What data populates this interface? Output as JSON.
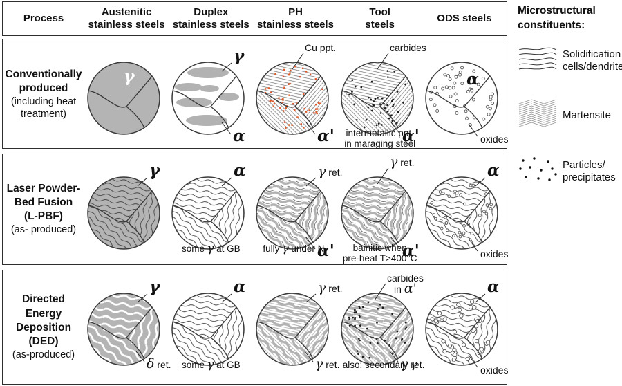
{
  "colors": {
    "gray_fill": "#b4b4b4",
    "line": "#3a3a3a",
    "orange_dot": "#df5b2a",
    "black_dot": "#1a1a1a",
    "gray_band": "#b2b2b2"
  },
  "header": {
    "process": "Process",
    "columns": [
      "Austenitic\nstainless steels",
      "Duplex\nstainless steels",
      "PH\nstainless steels",
      "Tool\nsteels",
      "ODS steels"
    ]
  },
  "rows": [
    {
      "process": {
        "title": "Conventionally\nproduced",
        "subtitle": "(including heat\ntreatment)"
      },
      "cells": [
        {
          "name": "conventional-austenitic",
          "pattern": "solid_gray",
          "dots": "none",
          "labels": [
            {
              "text": "γ",
              "pos": "inside-top",
              "color": "#ffffff"
            }
          ],
          "caption": ""
        },
        {
          "name": "conventional-duplex",
          "pattern": "ellipses",
          "dots": "none",
          "labels": [
            {
              "text": "γ",
              "pos": "top-right"
            },
            {
              "text": "α",
              "pos": "bottom-right-big"
            }
          ],
          "caption": ""
        },
        {
          "name": "conventional-ph",
          "pattern": "hatch",
          "dots": "orange",
          "labels": [
            {
              "text": "Cu ppt.",
              "pos": "above-right"
            },
            {
              "text": "α'",
              "pos": "bottom-right-big"
            }
          ],
          "caption": ""
        },
        {
          "name": "conventional-tool",
          "pattern": "hatch",
          "dots": "black",
          "labels": [
            {
              "text": "carbides",
              "pos": "above-right"
            },
            {
              "text": "α'",
              "pos": "bottom-right-big"
            }
          ],
          "caption": "intermetallic ppt.\nin maraging steel"
        },
        {
          "name": "conventional-ods",
          "pattern": "plain",
          "dots": "open_small",
          "labels": [
            {
              "text": "α",
              "pos": "inside-top-big"
            },
            {
              "text": "oxides",
              "pos": "oxides-out"
            }
          ],
          "caption": ""
        }
      ]
    },
    {
      "process": {
        "title": "Laser Powder-\nBed Fusion\n(L-PBF)",
        "subtitle": "(as- produced)"
      },
      "cells": [
        {
          "name": "lpbf-austenitic",
          "pattern": "wavy_dark_on_gray",
          "dots": "none",
          "labels": [
            {
              "text": "γ",
              "pos": "top-right"
            }
          ],
          "caption": ""
        },
        {
          "name": "lpbf-duplex",
          "pattern": "wavy_dark",
          "dots": "none",
          "labels": [
            {
              "text": "α",
              "pos": "top-right"
            }
          ],
          "caption": "some γ at GB"
        },
        {
          "name": "lpbf-ph",
          "pattern": "wavy_bands",
          "dots": "none",
          "labels": [
            {
              "text": "γ ret.",
              "pos": "top-right"
            },
            {
              "text": "α'",
              "pos": "bottom-right-big"
            }
          ],
          "caption": "fully γ under N₂"
        },
        {
          "name": "lpbf-tool",
          "pattern": "wavy_bands",
          "dots": "none",
          "labels": [
            {
              "text": "γ ret.",
              "pos": "above-right"
            },
            {
              "text": "α'",
              "pos": "bottom-right-big"
            }
          ],
          "caption": "bainitic when\npre-heat T>400°C"
        },
        {
          "name": "lpbf-ods",
          "pattern": "wavy_dark",
          "dots": "open_med",
          "labels": [
            {
              "text": "α",
              "pos": "top-right"
            },
            {
              "text": "oxides",
              "pos": "oxides-out"
            }
          ],
          "caption": ""
        }
      ]
    },
    {
      "process": {
        "title": "Directed\nEnergy\nDeposition\n(DED)",
        "subtitle": "(as-produced)"
      },
      "cells": [
        {
          "name": "ded-austenitic",
          "pattern": "wavy_white_on_gray",
          "dots": "none",
          "labels": [
            {
              "text": "γ",
              "pos": "top-right"
            },
            {
              "text": "δ ret.",
              "pos": "bottom-right"
            }
          ],
          "caption": ""
        },
        {
          "name": "ded-duplex",
          "pattern": "wavy_dark",
          "dots": "none",
          "labels": [
            {
              "text": "α",
              "pos": "top-right"
            }
          ],
          "caption": "some γ at GB"
        },
        {
          "name": "ded-ph",
          "pattern": "hatch_bands",
          "dots": "none",
          "labels": [
            {
              "text": "γ ret.",
              "pos": "top-right"
            },
            {
              "text": "γ ret.",
              "pos": "bottom-right"
            }
          ],
          "caption": ""
        },
        {
          "name": "ded-tool",
          "pattern": "hatch_bands",
          "dots": "black",
          "labels": [
            {
              "text": "carbides\nin α'",
              "pos": "above-right-2"
            },
            {
              "text": "γ ret.",
              "pos": "bottom-right"
            }
          ],
          "caption": "also: secondary γ"
        },
        {
          "name": "ded-ods",
          "pattern": "wavy_dark",
          "dots": "open_big",
          "labels": [
            {
              "text": "α",
              "pos": "top-right"
            },
            {
              "text": "oxides",
              "pos": "oxides-out"
            }
          ],
          "caption": ""
        }
      ]
    }
  ],
  "legend": {
    "title": "Microstructural\nconstituents:",
    "items": [
      {
        "icon": "solidification-lines-icon",
        "label": "Solidification\ncells/dendrites"
      },
      {
        "icon": "martensite-hatch-icon",
        "label": "Martensite"
      },
      {
        "icon": "particles-dots-icon",
        "label": "Particles/\nprecipitates"
      }
    ]
  }
}
